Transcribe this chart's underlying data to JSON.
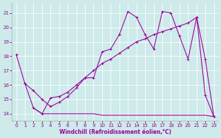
{
  "xlabel": "Windchill (Refroidissement éolien,°C)",
  "background_color": "#ceeaea",
  "line_color": "#990099",
  "xlim": [
    -0.5,
    23.5
  ],
  "ylim": [
    13.5,
    21.7
  ],
  "yticks": [
    14,
    15,
    16,
    17,
    18,
    19,
    20,
    21
  ],
  "xticks": [
    0,
    1,
    2,
    3,
    4,
    5,
    6,
    7,
    8,
    9,
    10,
    11,
    12,
    13,
    14,
    15,
    16,
    17,
    18,
    19,
    20,
    21,
    22,
    23
  ],
  "line1_x": [
    0,
    1,
    2,
    3,
    4,
    5,
    6,
    7,
    8,
    9,
    10,
    11,
    12,
    13,
    14,
    15,
    16,
    17,
    18,
    19,
    20,
    21,
    22,
    23
  ],
  "line1_y": [
    18.1,
    16.1,
    14.4,
    14.0,
    15.1,
    15.2,
    15.5,
    16.0,
    16.5,
    16.5,
    18.3,
    18.5,
    19.5,
    21.1,
    20.7,
    19.5,
    18.5,
    21.1,
    21.0,
    19.4,
    17.8,
    20.7,
    15.3,
    13.8
  ],
  "line2_x": [
    1,
    2,
    3,
    4,
    5,
    6,
    7,
    8,
    9,
    10,
    11,
    12,
    13,
    14,
    15,
    16,
    17,
    18,
    19,
    20,
    21,
    22,
    23
  ],
  "line2_y": [
    16.1,
    15.6,
    15.0,
    14.5,
    14.8,
    15.2,
    15.8,
    16.5,
    17.0,
    17.5,
    17.8,
    18.2,
    18.6,
    19.0,
    19.2,
    19.5,
    19.7,
    19.9,
    20.1,
    20.3,
    20.7,
    17.8,
    13.8
  ],
  "line3_x": [
    2,
    3,
    4,
    5,
    6,
    7,
    8,
    9,
    10,
    11,
    12,
    13,
    14,
    15,
    16,
    17,
    18,
    19,
    20,
    21,
    22,
    23
  ],
  "line3_y": [
    14.4,
    14.0,
    14.0,
    14.0,
    14.0,
    14.0,
    14.0,
    14.0,
    13.9,
    13.9,
    13.9,
    13.9,
    13.9,
    13.9,
    13.9,
    13.9,
    13.9,
    13.9,
    13.9,
    13.9,
    13.9,
    13.8
  ]
}
